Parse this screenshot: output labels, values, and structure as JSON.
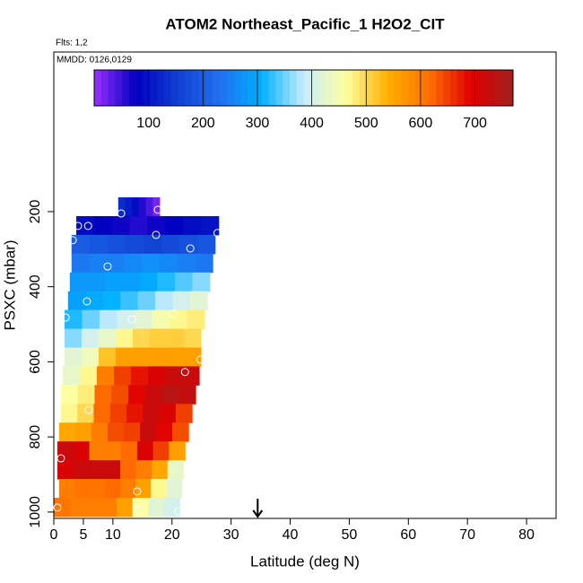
{
  "chart_data": {
    "type": "curtain",
    "title": "ATOM2 Northeast_Pacific_1 H2O2_CIT",
    "annotations": [
      "Flts: 1,2",
      "MMDD: 0126,0129"
    ],
    "xlabel": "Latitude (deg N)",
    "ylabel": "PSXC (mbar)",
    "xlim": [
      0,
      85
    ],
    "xticks": [
      0,
      5,
      10,
      20,
      30,
      40,
      50,
      60,
      70,
      80
    ],
    "ylim": [
      1017,
      -225
    ],
    "yticks": [
      200,
      400,
      600,
      800,
      1000
    ],
    "zlim": [
      0,
      770
    ],
    "zticks": [
      100,
      200,
      300,
      400,
      500,
      600,
      700
    ],
    "colormap": [
      "#9b30ff",
      "#0000c0",
      "#1040d0",
      "#2070f0",
      "#00b0ff",
      "#c8ecff",
      "#ffffa0",
      "#ffb000",
      "#ff7000",
      "#e00000",
      "#a02020"
    ],
    "row_height": 50,
    "rows": [
      {
        "p": 187,
        "lat": [
          10.9,
          17.9
        ],
        "values": [
          130,
          110,
          90,
          60,
          40,
          20
        ]
      },
      {
        "p": 237,
        "lat": [
          3.8,
          27.9
        ],
        "values": [
          90,
          80,
          70,
          60,
          70,
          80,
          90,
          100
        ]
      },
      {
        "p": 287,
        "lat": [
          3.0,
          27.3
        ],
        "values": [
          200,
          190,
          180,
          170,
          160,
          170,
          180,
          190
        ]
      },
      {
        "p": 337,
        "lat": [
          3.0,
          26.9
        ],
        "values": [
          240,
          250,
          250,
          260,
          270,
          260,
          250,
          240
        ]
      },
      {
        "p": 387,
        "lat": [
          2.7,
          26.4
        ],
        "values": [
          280,
          280,
          290,
          290,
          300,
          320,
          340,
          360
        ]
      },
      {
        "p": 437,
        "lat": [
          2.4,
          26.0
        ],
        "values": [
          290,
          300,
          310,
          330,
          350,
          380,
          400,
          420
        ]
      },
      {
        "p": 487,
        "lat": [
          1.8,
          25.5
        ],
        "values": [
          320,
          350,
          380,
          400,
          420,
          450,
          470,
          480
        ]
      },
      {
        "p": 537,
        "lat": [
          1.8,
          24.9
        ],
        "values": [
          360,
          400,
          430,
          470,
          500,
          510,
          510,
          500
        ]
      },
      {
        "p": 587,
        "lat": [
          1.8,
          24.9
        ],
        "values": [
          420,
          440,
          520,
          560,
          560,
          560,
          560,
          560
        ]
      },
      {
        "p": 637,
        "lat": [
          1.5,
          24.6
        ],
        "values": [
          430,
          470,
          600,
          650,
          680,
          700,
          720,
          720
        ]
      },
      {
        "p": 687,
        "lat": [
          1.2,
          24.0
        ],
        "values": [
          460,
          480,
          620,
          640,
          690,
          720,
          740,
          730
        ]
      },
      {
        "p": 737,
        "lat": [
          1.2,
          23.4
        ],
        "values": [
          470,
          500,
          620,
          650,
          680,
          720,
          700,
          650
        ]
      },
      {
        "p": 787,
        "lat": [
          0.9,
          22.8
        ],
        "values": [
          550,
          560,
          600,
          640,
          650,
          720,
          690,
          640
        ]
      },
      {
        "p": 837,
        "lat": [
          0.6,
          22.2
        ],
        "values": [
          720,
          700,
          600,
          600,
          620,
          700,
          650,
          560
        ]
      },
      {
        "p": 887,
        "lat": [
          0.6,
          21.9
        ],
        "values": [
          700,
          720,
          720,
          720,
          620,
          600,
          550,
          430
        ]
      },
      {
        "p": 937,
        "lat": [
          0.9,
          21.6
        ],
        "values": [
          600,
          610,
          610,
          620,
          600,
          560,
          470,
          420
        ]
      },
      {
        "p": 987,
        "lat": [
          0.0,
          21.3
        ],
        "values": [
          610,
          600,
          600,
          600,
          560,
          460,
          420,
          400
        ]
      }
    ],
    "points": {
      "x": [
        11.4,
        17.6,
        4.1,
        5.8,
        3.2,
        17.3,
        23.1,
        9.1,
        5.6,
        2.0,
        13.2,
        20.2,
        24.8,
        22.2,
        5.9,
        1.2,
        14.1,
        14.3,
        0.6,
        21.1,
        27.7
      ],
      "y": [
        205,
        195,
        238,
        238,
        276,
        262,
        298,
        346,
        439,
        482,
        487,
        472,
        594,
        627,
        728,
        857,
        945,
        993,
        988,
        998,
        257
      ]
    },
    "arrow_x": 34.5
  }
}
